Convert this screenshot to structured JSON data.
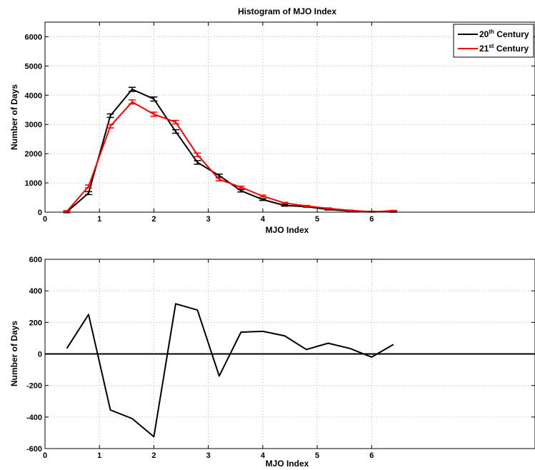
{
  "chart_data": [
    {
      "type": "line",
      "title": "Histogram of MJO Index",
      "xlabel": "MJO Index",
      "ylabel": "Number of Days",
      "xlim": [
        0,
        9
      ],
      "ylim": [
        0,
        6500
      ],
      "xticks": [
        0,
        1,
        2,
        3,
        4,
        5,
        6
      ],
      "yticks": [
        0,
        1000,
        2000,
        3000,
        4000,
        5000,
        6000
      ],
      "grid": true,
      "legend": "top-right",
      "x": [
        0.4,
        0.8,
        1.2,
        1.6,
        2.0,
        2.4,
        2.8,
        3.2,
        3.6,
        4.0,
        4.4,
        4.8,
        5.2,
        5.6,
        6.0,
        6.4
      ],
      "series": [
        {
          "name": "20",
          "name_sup": "th",
          "name_rest": " Century",
          "color": "#000000",
          "values": [
            10,
            650,
            3300,
            4200,
            3870,
            2760,
            1700,
            1250,
            730,
            430,
            230,
            190,
            90,
            40,
            20,
            10
          ],
          "error": [
            30,
            50,
            60,
            70,
            70,
            60,
            60,
            50,
            40,
            30,
            25,
            20,
            15,
            10,
            10,
            10
          ]
        },
        {
          "name": "21",
          "name_sup": "st",
          "name_rest": " Century",
          "color": "#ff0000",
          "values": [
            20,
            880,
            2940,
            3770,
            3350,
            3080,
            1960,
            1120,
            850,
            550,
            310,
            210,
            130,
            60,
            10,
            50
          ],
          "error": [
            30,
            50,
            60,
            70,
            70,
            60,
            60,
            50,
            40,
            30,
            25,
            20,
            15,
            10,
            10,
            10
          ]
        }
      ]
    },
    {
      "type": "line",
      "title": "",
      "xlabel": "MJO Index",
      "ylabel": "Number of Days",
      "xlim": [
        0,
        9
      ],
      "ylim": [
        -600,
        600
      ],
      "xticks": [
        0,
        1,
        2,
        3,
        4,
        5,
        6
      ],
      "yticks": [
        -600,
        -400,
        -200,
        0,
        200,
        400,
        600
      ],
      "grid": true,
      "zero_line": true,
      "x": [
        0.4,
        0.8,
        1.2,
        1.6,
        2.0,
        2.4,
        2.8,
        3.2,
        3.6,
        4.0,
        4.4,
        4.8,
        5.2,
        5.6,
        6.0,
        6.4
      ],
      "series": [
        {
          "color": "#000000",
          "values": [
            35,
            250,
            -355,
            -410,
            -525,
            318,
            278,
            -140,
            138,
            143,
            115,
            28,
            68,
            35,
            -20,
            60
          ]
        }
      ]
    }
  ]
}
